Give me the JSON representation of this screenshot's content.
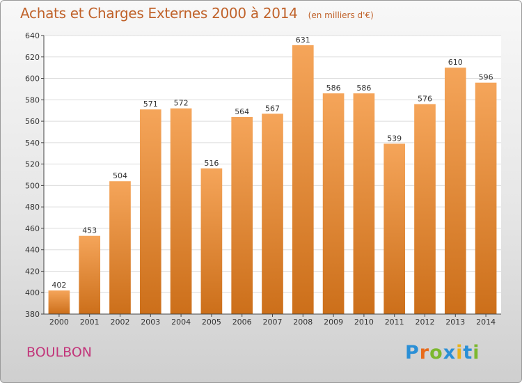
{
  "header": {
    "title": "Achats et Charges Externes 2000 à 2014",
    "subtitle": "(en milliers d'€)"
  },
  "footer": {
    "commune": "BOULBON",
    "logo": "Proxiti"
  },
  "colors": {
    "bar_top": "#f5a55a",
    "bar_bottom": "#cc6f1a",
    "title": "#c0622a",
    "commune": "#c2357a",
    "logo_letters": [
      "#2a8fd6",
      "#e86a1a",
      "#7cb82f",
      "#2a8fd6",
      "#e8b21a",
      "#2a8fd6",
      "#7cb82f"
    ]
  },
  "chart_data": {
    "type": "bar",
    "categories": [
      "2000",
      "2001",
      "2002",
      "2003",
      "2004",
      "2005",
      "2006",
      "2007",
      "2008",
      "2009",
      "2010",
      "2011",
      "2012",
      "2013",
      "2014"
    ],
    "values": [
      402,
      453,
      504,
      571,
      572,
      516,
      564,
      567,
      631,
      586,
      586,
      539,
      576,
      610,
      596
    ],
    "ylim": [
      380,
      640
    ],
    "yticks": [
      380,
      400,
      420,
      440,
      460,
      480,
      500,
      520,
      540,
      560,
      580,
      600,
      620,
      640
    ],
    "grid": true,
    "data_labels": true
  }
}
